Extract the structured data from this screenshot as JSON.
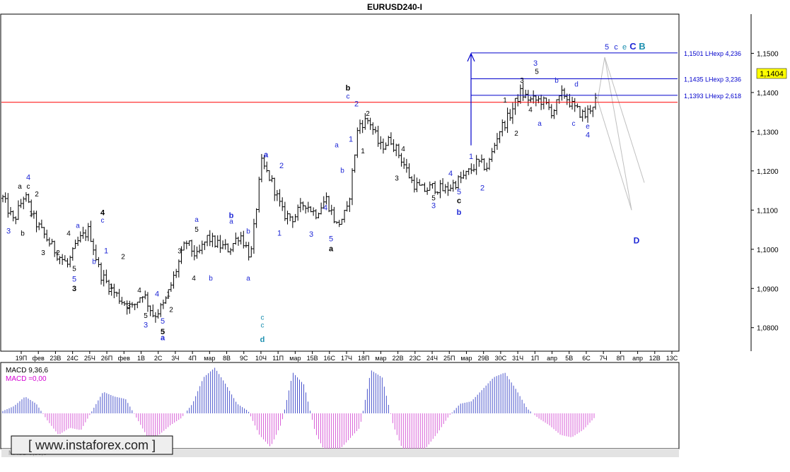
{
  "title": "EURUSD240-I",
  "price_tag": "1,1404",
  "colors": {
    "bar": "#000000",
    "price_line": "#ff0000",
    "target_line": "#0000cc",
    "fan": "#bfbfbf",
    "macd_pos": "#4a55cc",
    "macd_neg": "#d85fd8",
    "macd_label": "#d400d4",
    "wave_blue": "#1f28d6",
    "wave_teal": "#1e90b0",
    "wave_black": "#000000"
  },
  "chart_data": {
    "type": "ohlc",
    "symbol": "EURUSD",
    "timeframe": "H4",
    "ylim": [
      1.074,
      1.16
    ],
    "y_ticks": [
      "1,1500",
      "1,1400",
      "1,1300",
      "1,1200",
      "1,1100",
      "1,1000",
      "1,0900",
      "1,0800"
    ],
    "x_labels": [
      "19П",
      "фев",
      "23В",
      "24С",
      "25Ч",
      "26П",
      "фев",
      "1В",
      "2С",
      "3Ч",
      "4П",
      "мар",
      "8В",
      "9С",
      "10Ч",
      "11П",
      "мар",
      "15В",
      "16С",
      "17Ч",
      "18П",
      "мар",
      "22В",
      "23С",
      "24Ч",
      "25П",
      "мар",
      "29В",
      "30С",
      "31Ч",
      "1П",
      "апр",
      "5В",
      "6С",
      "7Ч",
      "8П",
      "апр",
      "12В",
      "13С"
    ],
    "price_anchors": [
      1.113,
      1.107,
      1.114,
      1.107,
      1.103,
      1.099,
      1.096,
      1.102,
      1.105,
      1.094,
      1.09,
      1.087,
      1.085,
      1.089,
      1.083,
      1.086,
      1.094,
      1.102,
      1.098,
      1.103,
      1.101,
      1.1,
      1.104,
      1.098,
      1.122,
      1.117,
      1.109,
      1.108,
      1.112,
      1.109,
      1.113,
      1.106,
      1.11,
      1.132,
      1.133,
      1.126,
      1.128,
      1.123,
      1.117,
      1.115,
      1.116,
      1.115,
      1.117,
      1.119,
      1.122,
      1.121,
      1.13,
      1.134,
      1.14,
      1.138,
      1.138,
      1.135,
      1.14,
      1.136,
      1.134,
      1.138
    ],
    "current_price": 1.1404,
    "price_level": 1.1375,
    "fibonacci_targets": [
      {
        "label": "1,1501 LHexp 4,236",
        "value": 1.1501
      },
      {
        "label": "1,1435 LHexp 3,236",
        "value": 1.1435
      },
      {
        "label": "1,1393 LHexp 2,618",
        "value": 1.1393
      }
    ],
    "wave_labels": [
      {
        "t": "4",
        "x": 40,
        "p": 1.1177,
        "c": "wave_blue",
        "b": false,
        "s": 11
      },
      {
        "t": "a",
        "x": 28,
        "p": 1.1155,
        "c": "wave_black",
        "b": false,
        "s": 10
      },
      {
        "t": "c",
        "x": 40,
        "p": 1.1155,
        "c": "wave_black",
        "b": false,
        "s": 10
      },
      {
        "t": "2",
        "x": 52,
        "p": 1.1135,
        "c": "wave_black",
        "b": false,
        "s": 10
      },
      {
        "t": "1",
        "x": 44,
        "p": 1.1085,
        "c": "wave_black",
        "b": false,
        "s": 10
      },
      {
        "t": "3",
        "x": 12,
        "p": 1.104,
        "c": "wave_blue",
        "b": false,
        "s": 11
      },
      {
        "t": "b",
        "x": 32,
        "p": 1.1035,
        "c": "wave_black",
        "b": false,
        "s": 10
      },
      {
        "t": "3",
        "x": 61,
        "p": 1.0985,
        "c": "wave_black",
        "b": false,
        "s": 10
      },
      {
        "t": "4",
        "x": 97,
        "p": 1.1035,
        "c": "wave_black",
        "b": false,
        "s": 10
      },
      {
        "t": "a",
        "x": 110,
        "p": 1.1055,
        "c": "wave_blue",
        "b": false,
        "s": 10
      },
      {
        "t": "2",
        "x": 82,
        "p": 1.0985,
        "c": "wave_black",
        "b": false,
        "s": 10
      },
      {
        "t": "5",
        "x": 105,
        "p": 1.0945,
        "c": "wave_black",
        "b": false,
        "s": 10
      },
      {
        "t": "5",
        "x": 105,
        "p": 1.0918,
        "c": "wave_blue",
        "b": false,
        "s": 11
      },
      {
        "t": "3",
        "x": 105,
        "p": 1.0893,
        "c": "wave_black",
        "b": true,
        "s": 11
      },
      {
        "t": "b",
        "x": 133,
        "p": 1.0963,
        "c": "wave_blue",
        "b": false,
        "s": 10
      },
      {
        "t": "4",
        "x": 145,
        "p": 1.1087,
        "c": "wave_black",
        "b": true,
        "s": 11
      },
      {
        "t": "c",
        "x": 145,
        "p": 1.1068,
        "c": "wave_blue",
        "b": false,
        "s": 10
      },
      {
        "t": "1",
        "x": 150,
        "p": 1.099,
        "c": "wave_blue",
        "b": false,
        "s": 11
      },
      {
        "t": "2",
        "x": 174,
        "p": 1.0975,
        "c": "wave_black",
        "b": false,
        "s": 10
      },
      {
        "t": "1",
        "x": 157,
        "p": 1.09,
        "c": "wave_black",
        "b": false,
        "s": 10
      },
      {
        "t": "3",
        "x": 182,
        "p": 1.085,
        "c": "wave_black",
        "b": false,
        "s": 10
      },
      {
        "t": "4",
        "x": 197,
        "p": 1.089,
        "c": "wave_black",
        "b": false,
        "s": 10
      },
      {
        "t": "4",
        "x": 222,
        "p": 1.088,
        "c": "wave_blue",
        "b": false,
        "s": 11
      },
      {
        "t": "1",
        "x": 238,
        "p": 1.088,
        "c": "wave_black",
        "b": false,
        "s": 10
      },
      {
        "t": "2",
        "x": 242,
        "p": 1.084,
        "c": "wave_black",
        "b": false,
        "s": 10
      },
      {
        "t": "5",
        "x": 206,
        "p": 1.0825,
        "c": "wave_black",
        "b": false,
        "s": 10
      },
      {
        "t": "3",
        "x": 206,
        "p": 1.08,
        "c": "wave_blue",
        "b": false,
        "s": 11
      },
      {
        "t": "5",
        "x": 230,
        "p": 1.081,
        "c": "wave_blue",
        "b": false,
        "s": 11
      },
      {
        "t": "5",
        "x": 230,
        "p": 1.0783,
        "c": "wave_black",
        "b": true,
        "s": 11
      },
      {
        "t": "a",
        "x": 230,
        "p": 1.0768,
        "c": "wave_blue",
        "b": true,
        "s": 11
      },
      {
        "t": "3",
        "x": 254,
        "p": 1.099,
        "c": "wave_black",
        "b": false,
        "s": 10
      },
      {
        "t": "4",
        "x": 274,
        "p": 1.092,
        "c": "wave_black",
        "b": false,
        "s": 10
      },
      {
        "t": "a",
        "x": 278,
        "p": 1.107,
        "c": "wave_blue",
        "b": false,
        "s": 10
      },
      {
        "t": "5",
        "x": 278,
        "p": 1.1045,
        "c": "wave_black",
        "b": false,
        "s": 10
      },
      {
        "t": "b",
        "x": 298,
        "p": 1.092,
        "c": "wave_blue",
        "b": false,
        "s": 10
      },
      {
        "t": "b",
        "x": 327,
        "p": 1.108,
        "c": "wave_blue",
        "b": true,
        "s": 11
      },
      {
        "t": "a",
        "x": 327,
        "p": 1.1065,
        "c": "wave_blue",
        "b": false,
        "s": 10
      },
      {
        "t": "b",
        "x": 351,
        "p": 1.104,
        "c": "wave_blue",
        "b": false,
        "s": 10
      },
      {
        "t": "a",
        "x": 351,
        "p": 1.092,
        "c": "wave_blue",
        "b": false,
        "s": 10
      },
      {
        "t": "a",
        "x": 376,
        "p": 1.1235,
        "c": "wave_blue",
        "b": true,
        "s": 11
      },
      {
        "t": "2",
        "x": 398,
        "p": 1.1207,
        "c": "wave_blue",
        "b": false,
        "s": 11
      },
      {
        "t": "1",
        "x": 395,
        "p": 1.1035,
        "c": "wave_blue",
        "b": false,
        "s": 11
      },
      {
        "t": "c",
        "x": 371,
        "p": 1.082,
        "c": "wave_teal",
        "b": false,
        "s": 10
      },
      {
        "t": "c",
        "x": 371,
        "p": 1.08,
        "c": "wave_teal",
        "b": false,
        "s": 10
      },
      {
        "t": "d",
        "x": 371,
        "p": 1.0763,
        "c": "wave_teal",
        "b": true,
        "s": 11
      },
      {
        "t": "3",
        "x": 440,
        "p": 1.1032,
        "c": "wave_blue",
        "b": false,
        "s": 11
      },
      {
        "t": "4",
        "x": 460,
        "p": 1.11,
        "c": "wave_blue",
        "b": false,
        "s": 11
      },
      {
        "t": "5",
        "x": 468,
        "p": 1.102,
        "c": "wave_blue",
        "b": false,
        "s": 11
      },
      {
        "t": "a",
        "x": 468,
        "p": 1.0995,
        "c": "wave_black",
        "b": true,
        "s": 11
      },
      {
        "t": "b",
        "x": 492,
        "p": 1.1405,
        "c": "wave_black",
        "b": true,
        "s": 11
      },
      {
        "t": "c",
        "x": 492,
        "p": 1.1385,
        "c": "wave_blue",
        "b": false,
        "s": 10
      },
      {
        "t": "2",
        "x": 504,
        "p": 1.1365,
        "c": "wave_blue",
        "b": false,
        "s": 11
      },
      {
        "t": "1",
        "x": 496,
        "p": 1.1275,
        "c": "wave_blue",
        "b": false,
        "s": 11
      },
      {
        "t": "a",
        "x": 476,
        "p": 1.126,
        "c": "wave_blue",
        "b": false,
        "s": 10
      },
      {
        "t": "b",
        "x": 484,
        "p": 1.1195,
        "c": "wave_blue",
        "b": false,
        "s": 10
      },
      {
        "t": "2",
        "x": 520,
        "p": 1.134,
        "c": "wave_black",
        "b": false,
        "s": 10
      },
      {
        "t": "1",
        "x": 513,
        "p": 1.1245,
        "c": "wave_black",
        "b": false,
        "s": 10
      },
      {
        "t": "4",
        "x": 570,
        "p": 1.125,
        "c": "wave_black",
        "b": false,
        "s": 10
      },
      {
        "t": "3",
        "x": 561,
        "p": 1.1175,
        "c": "wave_black",
        "b": false,
        "s": 10
      },
      {
        "t": "4",
        "x": 637,
        "p": 1.1187,
        "c": "wave_blue",
        "b": false,
        "s": 11
      },
      {
        "t": "5",
        "x": 613,
        "p": 1.1125,
        "c": "wave_black",
        "b": false,
        "s": 10
      },
      {
        "t": "3",
        "x": 613,
        "p": 1.1105,
        "c": "wave_blue",
        "b": false,
        "s": 11
      },
      {
        "t": "5",
        "x": 649,
        "p": 1.114,
        "c": "wave_blue",
        "b": false,
        "s": 11
      },
      {
        "t": "c",
        "x": 649,
        "p": 1.1118,
        "c": "wave_black",
        "b": true,
        "s": 11
      },
      {
        "t": "b",
        "x": 649,
        "p": 1.1088,
        "c": "wave_blue",
        "b": true,
        "s": 11
      },
      {
        "t": "2",
        "x": 682,
        "p": 1.115,
        "c": "wave_blue",
        "b": false,
        "s": 11
      },
      {
        "t": "1",
        "x": 666,
        "p": 1.123,
        "c": "wave_blue",
        "b": false,
        "s": 11
      },
      {
        "t": "1",
        "x": 714,
        "p": 1.1375,
        "c": "wave_black",
        "b": false,
        "s": 10
      },
      {
        "t": "2",
        "x": 730,
        "p": 1.129,
        "c": "wave_black",
        "b": false,
        "s": 10
      },
      {
        "t": "3",
        "x": 738,
        "p": 1.1425,
        "c": "wave_black",
        "b": false,
        "s": 10
      },
      {
        "t": "4",
        "x": 750,
        "p": 1.135,
        "c": "wave_black",
        "b": false,
        "s": 10
      },
      {
        "t": "3",
        "x": 757,
        "p": 1.1468,
        "c": "wave_blue",
        "b": false,
        "s": 11
      },
      {
        "t": "5",
        "x": 759,
        "p": 1.1448,
        "c": "wave_black",
        "b": false,
        "s": 10
      },
      {
        "t": "a",
        "x": 763,
        "p": 1.1315,
        "c": "wave_blue",
        "b": false,
        "s": 10
      },
      {
        "t": "b",
        "x": 787,
        "p": 1.1425,
        "c": "wave_blue",
        "b": false,
        "s": 10
      },
      {
        "t": "c",
        "x": 811,
        "p": 1.1315,
        "c": "wave_blue",
        "b": false,
        "s": 10
      },
      {
        "t": "d",
        "x": 815,
        "p": 1.1415,
        "c": "wave_blue",
        "b": false,
        "s": 10
      },
      {
        "t": "e",
        "x": 831,
        "p": 1.1308,
        "c": "wave_blue",
        "b": false,
        "s": 10
      },
      {
        "t": "4",
        "x": 831,
        "p": 1.1285,
        "c": "wave_blue",
        "b": false,
        "s": 11
      },
      {
        "t": "5",
        "x": 858,
        "p": 1.151,
        "c": "wave_blue",
        "b": false,
        "s": 11
      },
      {
        "t": "c",
        "x": 871,
        "p": 1.151,
        "c": "wave_blue",
        "b": false,
        "s": 11
      },
      {
        "t": "e",
        "x": 883,
        "p": 1.151,
        "c": "wave_teal",
        "b": false,
        "s": 11
      },
      {
        "t": "C",
        "x": 895,
        "p": 1.151,
        "c": "wave_blue",
        "b": true,
        "s": 13
      },
      {
        "t": "B",
        "x": 908,
        "p": 1.151,
        "c": "wave_teal",
        "b": true,
        "s": 13
      },
      {
        "t": "D",
        "x": 900,
        "p": 1.1015,
        "c": "wave_blue",
        "b": true,
        "s": 12
      }
    ],
    "indicator": {
      "name": "MACD",
      "params": "MACD 9,36,6",
      "value_label": "MACD =0,00",
      "legend_partial": "MACD 9,36,6",
      "values": [
        0.05,
        0.15,
        0.35,
        0.2,
        -0.15,
        -0.45,
        -0.3,
        -0.35,
        0.05,
        0.45,
        0.35,
        0.3,
        -0.1,
        -0.5,
        -0.45,
        -0.25,
        -0.1,
        0.2,
        0.75,
        0.95,
        0.6,
        0.2,
        0.05,
        -0.45,
        -0.7,
        -0.2,
        0.85,
        0.6,
        -0.4,
        -0.85,
        -0.8,
        -0.55,
        -0.3,
        0.9,
        0.75,
        -0.25,
        -0.85,
        -0.9,
        -0.7,
        -0.4,
        -0.05,
        0.2,
        0.25,
        0.5,
        0.75,
        0.85,
        0.5,
        0.1,
        -0.1,
        -0.25,
        -0.45,
        -0.5,
        -0.35,
        -0.1
      ]
    }
  },
  "watermark": "[ www.instaforex.com ]"
}
